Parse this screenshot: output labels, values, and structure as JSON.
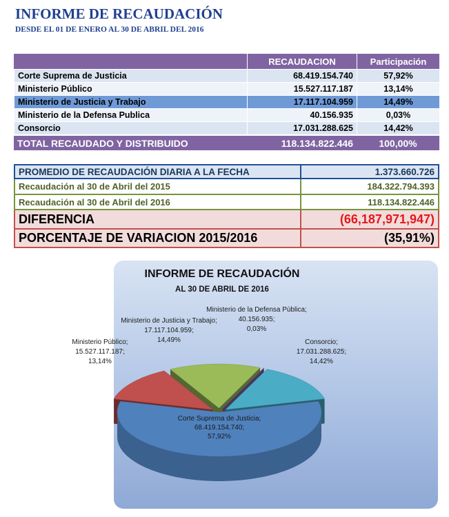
{
  "header": {
    "title": "INFORME DE RECAUDACIÓN",
    "subtitle": "DESDE EL 01 DE ENERO AL 30 DE ABRIL DEL 2016"
  },
  "table": {
    "columns": [
      "RECAUDACION",
      "Participación"
    ],
    "rows": [
      [
        "Corte Suprema de Justicia",
        "68.419.154.740",
        "57,92%"
      ],
      [
        "Ministerio Público",
        "15.527.117.187",
        "13,14%"
      ],
      [
        "Ministerio de Justicia y Trabajo",
        "17.117.104.959",
        "14,49%"
      ],
      [
        "Ministerio de la Defensa Publica",
        "40.156.935",
        "0,03%"
      ],
      [
        "Consorcio",
        "17.031.288.625",
        "14,42%"
      ]
    ],
    "total": [
      "TOTAL RECAUDADO Y DISTRIBUIDO",
      "118.134.822.446",
      "100,00%"
    ]
  },
  "summary": {
    "rows": [
      [
        "PROMEDIO DE RECAUDACIÓN DIARIA A LA FECHA",
        "1.373.660.726"
      ],
      [
        "Recaudación al 30 de Abril del 2015",
        "184.322.794.393"
      ],
      [
        "Recaudación al 30 de Abril del 2016",
        "118.134.822.446"
      ],
      [
        "DIFERENCIA",
        "(66,187,971,947)"
      ],
      [
        "PORCENTAJE DE VARIACION 2015/2016",
        "(35,91%)"
      ]
    ]
  },
  "chart_data": {
    "type": "pie",
    "title": "INFORME DE RECAUDACIÓN",
    "subtitle": "AL 30 DE ABRIL DE 2016",
    "categories": [
      "Corte Suprema de Justicia",
      "Ministerio Público",
      "Ministerio de Justicia y Trabajo",
      "Ministerio de la Defensa Pública",
      "Consorcio"
    ],
    "values": [
      68419154740,
      15527117187,
      17117104959,
      40156935,
      17031288625
    ],
    "value_labels": [
      "68.419.154.740",
      "15.527.117.187",
      "17.117.104.959",
      "40.156.935",
      "17.031.288.625"
    ],
    "percent_labels": [
      "57,92%",
      "13,14%",
      "14,49%",
      "0,03%",
      "14,42%"
    ],
    "label_separator": ";",
    "colors": [
      "#4f81bd",
      "#c0504d",
      "#9bbb59",
      "#8064a2",
      "#4bacc6"
    ]
  }
}
